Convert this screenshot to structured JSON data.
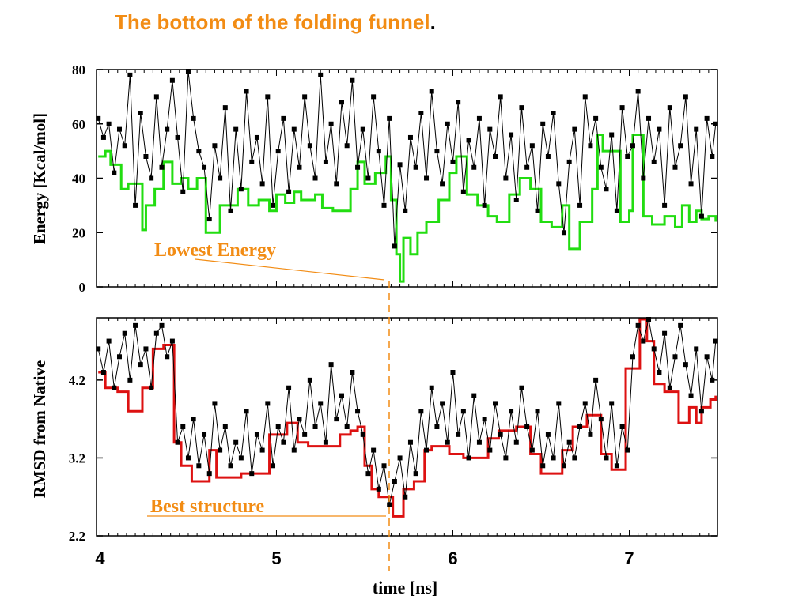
{
  "title": {
    "text": "The bottom of the folding funnel",
    "dot": "."
  },
  "colors": {
    "title": "#F28C14",
    "annotation": "#F28C14",
    "energy_min": "#22DD11",
    "rmsd_min": "#DD1111",
    "raw": "#000000"
  },
  "xlabel": "time [ns]",
  "x_ticks": [
    "4",
    "5",
    "6",
    "7"
  ],
  "chart_data": [
    {
      "type": "line",
      "ylabel": "Energy  [Kcal/mol]",
      "xlim": [
        3.98,
        7.5
      ],
      "ylim": [
        0,
        80
      ],
      "y_ticks": [
        "0",
        "20",
        "40",
        "60",
        "80"
      ],
      "annotation": {
        "text": "Lowest  Energy",
        "x": 5.65,
        "y": 2
      },
      "series": [
        {
          "style": "line-with-points",
          "x": [
            3.99,
            4.02,
            4.05,
            4.08,
            4.11,
            4.14,
            4.17,
            4.2,
            4.23,
            4.26,
            4.29,
            4.32,
            4.35,
            4.38,
            4.41,
            4.44,
            4.47,
            4.5,
            4.53,
            4.56,
            4.59,
            4.62,
            4.65,
            4.68,
            4.71,
            4.74,
            4.77,
            4.8,
            4.83,
            4.86,
            4.89,
            4.92,
            4.95,
            4.98,
            5.01,
            5.04,
            5.07,
            5.1,
            5.13,
            5.16,
            5.19,
            5.22,
            5.25,
            5.28,
            5.31,
            5.34,
            5.37,
            5.4,
            5.43,
            5.46,
            5.49,
            5.52,
            5.55,
            5.58,
            5.61,
            5.64,
            5.67,
            5.7,
            5.73,
            5.76,
            5.79,
            5.82,
            5.85,
            5.88,
            5.91,
            5.94,
            5.97,
            6.0,
            6.03,
            6.06,
            6.09,
            6.12,
            6.15,
            6.18,
            6.21,
            6.24,
            6.27,
            6.3,
            6.33,
            6.36,
            6.39,
            6.42,
            6.45,
            6.48,
            6.51,
            6.54,
            6.57,
            6.6,
            6.63,
            6.66,
            6.69,
            6.72,
            6.75,
            6.78,
            6.81,
            6.84,
            6.87,
            6.9,
            6.93,
            6.96,
            6.99,
            7.02,
            7.05,
            7.08,
            7.11,
            7.14,
            7.17,
            7.2,
            7.23,
            7.26,
            7.29,
            7.32,
            7.35,
            7.38,
            7.41,
            7.44,
            7.47,
            7.49
          ],
          "y": [
            62,
            55,
            60,
            42,
            58,
            52,
            78,
            30,
            64,
            48,
            40,
            70,
            44,
            58,
            76,
            55,
            35,
            80,
            62,
            50,
            44,
            25,
            52,
            40,
            66,
            28,
            58,
            36,
            72,
            46,
            55,
            38,
            70,
            30,
            50,
            62,
            35,
            58,
            44,
            70,
            52,
            40,
            78,
            46,
            60,
            38,
            68,
            52,
            76,
            44,
            58,
            40,
            70,
            50,
            30,
            62,
            15,
            45,
            28,
            55,
            44,
            64,
            40,
            72,
            50,
            38,
            60,
            46,
            68,
            35,
            54,
            44,
            62,
            30,
            58,
            48,
            70,
            40,
            56,
            32,
            66,
            44,
            52,
            28,
            60,
            48,
            64,
            38,
            20,
            46,
            58,
            30,
            70,
            52,
            62,
            44,
            36,
            56,
            28,
            66,
            48,
            52,
            72,
            40,
            62,
            46,
            58,
            30,
            66,
            44,
            52,
            70,
            38,
            58,
            26,
            62,
            48,
            60
          ],
          "name": ""
        },
        {
          "style": "step",
          "x": [
            3.99,
            4.03,
            4.06,
            4.12,
            4.16,
            4.24,
            4.26,
            4.31,
            4.36,
            4.41,
            4.46,
            4.5,
            4.55,
            4.6,
            4.68,
            4.74,
            4.78,
            4.84,
            4.9,
            4.96,
            5.0,
            5.05,
            5.1,
            5.14,
            5.22,
            5.26,
            5.32,
            5.42,
            5.46,
            5.5,
            5.56,
            5.62,
            5.65,
            5.68,
            5.7,
            5.72,
            5.76,
            5.8,
            5.85,
            5.92,
            5.98,
            6.02,
            6.08,
            6.14,
            6.2,
            6.25,
            6.32,
            6.38,
            6.44,
            6.5,
            6.56,
            6.62,
            6.66,
            6.72,
            6.79,
            6.82,
            6.85,
            6.95,
            7.0,
            7.02,
            7.08,
            7.13,
            7.2,
            7.26,
            7.3,
            7.34,
            7.38,
            7.41,
            7.45,
            7.49
          ],
          "y": [
            48,
            50,
            45,
            36,
            38,
            21,
            30,
            36,
            46,
            38,
            40,
            36,
            40,
            20,
            30,
            30,
            36,
            30,
            32,
            28,
            34,
            31,
            35,
            32,
            34,
            29,
            28,
            36,
            46,
            38,
            42,
            48,
            32,
            12,
            2,
            18,
            12,
            20,
            24,
            32,
            42,
            48,
            34,
            30,
            26,
            24,
            34,
            40,
            36,
            24,
            22,
            30,
            14,
            24,
            36,
            56,
            50,
            24,
            28,
            56,
            26,
            23,
            26,
            22,
            30,
            24,
            28,
            25,
            26,
            24
          ],
          "name": ""
        }
      ]
    },
    {
      "type": "line",
      "ylabel": "RMSD from  Native",
      "xlim": [
        3.98,
        7.5
      ],
      "ylim": [
        2.2,
        5.0
      ],
      "y_ticks": [
        "2.2",
        "3.2",
        "4.2"
      ],
      "annotation": {
        "text": "Best structure",
        "x": 5.66,
        "y": 2.48
      },
      "series": [
        {
          "style": "line-with-points",
          "x": [
            3.99,
            4.02,
            4.05,
            4.08,
            4.11,
            4.14,
            4.17,
            4.2,
            4.23,
            4.26,
            4.29,
            4.32,
            4.35,
            4.38,
            4.41,
            4.44,
            4.47,
            4.5,
            4.53,
            4.56,
            4.59,
            4.62,
            4.65,
            4.68,
            4.71,
            4.74,
            4.77,
            4.8,
            4.83,
            4.86,
            4.89,
            4.92,
            4.95,
            4.98,
            5.01,
            5.04,
            5.07,
            5.1,
            5.13,
            5.16,
            5.19,
            5.22,
            5.25,
            5.28,
            5.31,
            5.34,
            5.37,
            5.4,
            5.43,
            5.46,
            5.49,
            5.52,
            5.55,
            5.58,
            5.61,
            5.64,
            5.67,
            5.7,
            5.73,
            5.76,
            5.79,
            5.82,
            5.85,
            5.88,
            5.91,
            5.94,
            5.97,
            6.0,
            6.03,
            6.06,
            6.09,
            6.12,
            6.15,
            6.18,
            6.21,
            6.24,
            6.27,
            6.3,
            6.33,
            6.36,
            6.39,
            6.42,
            6.45,
            6.48,
            6.51,
            6.54,
            6.57,
            6.6,
            6.63,
            6.66,
            6.69,
            6.72,
            6.75,
            6.78,
            6.81,
            6.84,
            6.87,
            6.9,
            6.93,
            6.96,
            6.99,
            7.02,
            7.05,
            7.08,
            7.11,
            7.14,
            7.17,
            7.2,
            7.23,
            7.26,
            7.29,
            7.32,
            7.35,
            7.38,
            7.41,
            7.44,
            7.47,
            7.49
          ],
          "y": [
            4.6,
            4.3,
            4.7,
            4.1,
            4.5,
            4.8,
            4.2,
            4.9,
            4.4,
            4.6,
            4.1,
            4.8,
            4.9,
            4.5,
            4.7,
            3.4,
            3.6,
            3.2,
            3.7,
            3.1,
            3.5,
            3.0,
            3.9,
            3.3,
            3.6,
            3.1,
            3.4,
            3.2,
            3.8,
            3.0,
            3.5,
            3.3,
            3.9,
            3.1,
            3.6,
            3.4,
            4.1,
            3.3,
            3.7,
            3.5,
            4.2,
            3.6,
            3.9,
            3.4,
            4.4,
            3.7,
            4.0,
            3.6,
            4.3,
            3.8,
            3.5,
            3.0,
            3.3,
            2.8,
            3.1,
            2.6,
            2.9,
            3.2,
            2.7,
            3.4,
            3.0,
            3.8,
            3.3,
            4.1,
            3.6,
            3.9,
            3.4,
            4.3,
            3.5,
            3.8,
            3.2,
            4.0,
            3.4,
            3.7,
            3.3,
            3.9,
            3.5,
            3.2,
            3.8,
            3.4,
            4.1,
            3.6,
            3.3,
            3.8,
            3.1,
            3.5,
            3.2,
            3.9,
            3.1,
            3.4,
            3.2,
            3.6,
            3.9,
            3.5,
            4.2,
            3.7,
            3.2,
            3.9,
            3.1,
            3.6,
            3.3,
            4.5,
            4.9,
            4.7,
            5.0,
            4.6,
            4.3,
            4.8,
            4.1,
            4.5,
            4.9,
            4.4,
            4.0,
            4.6,
            3.8,
            4.5,
            4.2,
            4.7
          ],
          "name": ""
        },
        {
          "style": "step",
          "x": [
            3.99,
            4.03,
            4.1,
            4.16,
            4.24,
            4.3,
            4.36,
            4.42,
            4.46,
            4.52,
            4.58,
            4.62,
            4.66,
            4.72,
            4.8,
            4.88,
            4.96,
            5.0,
            5.06,
            5.12,
            5.18,
            5.26,
            5.36,
            5.42,
            5.46,
            5.5,
            5.54,
            5.58,
            5.62,
            5.66,
            5.72,
            5.78,
            5.84,
            5.88,
            5.98,
            6.06,
            6.14,
            6.2,
            6.26,
            6.36,
            6.44,
            6.5,
            6.56,
            6.62,
            6.68,
            6.76,
            6.84,
            6.9,
            6.94,
            6.98,
            7.06,
            7.1,
            7.14,
            7.2,
            7.28,
            7.34,
            7.38,
            7.41,
            7.46,
            7.49
          ],
          "y": [
            4.3,
            4.1,
            4.05,
            3.8,
            4.1,
            4.6,
            4.65,
            3.4,
            3.1,
            2.9,
            2.9,
            3.3,
            2.95,
            2.95,
            3.0,
            3.0,
            3.5,
            3.5,
            3.65,
            3.4,
            3.35,
            3.35,
            3.5,
            3.55,
            3.6,
            3.1,
            2.8,
            2.7,
            2.7,
            2.45,
            2.8,
            2.9,
            3.3,
            3.35,
            3.25,
            3.2,
            3.2,
            3.45,
            3.55,
            3.6,
            3.25,
            3.0,
            3.0,
            3.3,
            3.6,
            3.75,
            3.25,
            3.05,
            3.05,
            4.35,
            5.0,
            4.7,
            4.15,
            4.05,
            3.65,
            3.85,
            3.65,
            3.85,
            3.95,
            4.0
          ],
          "name": ""
        }
      ]
    }
  ]
}
